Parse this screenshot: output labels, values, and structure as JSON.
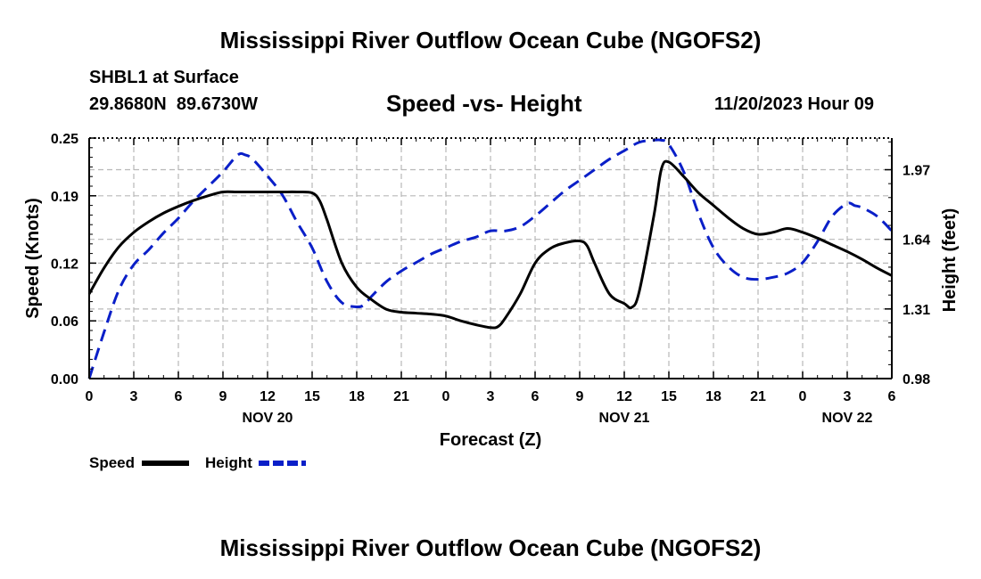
{
  "header": {
    "title": "Mississippi River Outflow Ocean Cube (NGOFS2)",
    "station": "SHBL1 at Surface",
    "coords": "29.8680N  89.6730W",
    "timestamp": "11/20/2023 Hour 09",
    "footer_title": "Mississippi River Outflow Ocean Cube (NGOFS2)"
  },
  "chart_data": {
    "type": "line",
    "title": "Speed -vs- Height",
    "xlabel": "Forecast (Z)",
    "ylabel": "Speed (Knots)",
    "y2label": "Height (feet)",
    "xlim": [
      0,
      54
    ],
    "ylim": [
      0,
      0.25
    ],
    "y2lim": [
      0.98,
      2.12
    ],
    "x_ticks": [
      0,
      3,
      6,
      9,
      12,
      15,
      18,
      21,
      24,
      27,
      30,
      33,
      36,
      39,
      42,
      45,
      48,
      51,
      54
    ],
    "x_tick_labels": [
      "0",
      "3",
      "6",
      "9",
      "12",
      "15",
      "18",
      "21",
      "0",
      "3",
      "6",
      "9",
      "12",
      "15",
      "18",
      "21",
      "0",
      "3",
      "6"
    ],
    "date_labels": [
      {
        "x": 12,
        "label": "NOV 20"
      },
      {
        "x": 36,
        "label": "NOV 21"
      },
      {
        "x": 51,
        "label": "NOV 22"
      }
    ],
    "y_ticks": [
      0.0,
      0.06,
      0.12,
      0.19,
      0.25
    ],
    "y_tick_labels": [
      "0.00",
      "0.06",
      "0.12",
      "0.19",
      "0.25"
    ],
    "y2_ticks": [
      0.98,
      1.31,
      1.64,
      1.97
    ],
    "y2_tick_labels": [
      "0.98",
      "1.31",
      "1.64",
      "1.97"
    ],
    "grid": true,
    "legend_position": "bottom-left",
    "series": [
      {
        "name": "Speed",
        "axis": "left",
        "color": "#000000",
        "dash": "solid",
        "x": [
          0,
          1,
          2,
          3,
          4,
          5,
          6,
          7,
          8,
          9,
          10,
          11,
          12,
          13,
          14,
          15,
          15.5,
          16,
          17,
          18,
          19,
          20,
          21,
          22,
          23,
          24,
          25,
          26,
          27,
          27.5,
          28,
          29,
          30,
          31,
          32,
          33,
          33.5,
          34,
          35,
          36,
          36.5,
          37,
          38,
          38.5,
          39,
          40,
          41,
          42,
          43,
          44,
          45,
          46,
          47,
          48,
          49,
          50,
          51,
          52,
          53,
          54
        ],
        "values": [
          0.088,
          0.115,
          0.137,
          0.152,
          0.163,
          0.172,
          0.179,
          0.185,
          0.19,
          0.194,
          0.194,
          0.194,
          0.194,
          0.194,
          0.194,
          0.193,
          0.185,
          0.165,
          0.12,
          0.095,
          0.082,
          0.072,
          0.069,
          0.068,
          0.067,
          0.065,
          0.06,
          0.056,
          0.053,
          0.054,
          0.063,
          0.088,
          0.12,
          0.135,
          0.141,
          0.143,
          0.138,
          0.12,
          0.088,
          0.078,
          0.074,
          0.09,
          0.17,
          0.218,
          0.225,
          0.21,
          0.193,
          0.18,
          0.167,
          0.156,
          0.15,
          0.152,
          0.156,
          0.152,
          0.146,
          0.139,
          0.132,
          0.124,
          0.115,
          0.107
        ]
      },
      {
        "name": "Height",
        "axis": "right",
        "color": "#0a1fc8",
        "dash": "dashed",
        "x": [
          0,
          1,
          2,
          3,
          4,
          5,
          6,
          7,
          8,
          9,
          10,
          10.5,
          11,
          12,
          13,
          14,
          15,
          16,
          17,
          18,
          18.5,
          19,
          20,
          21,
          22,
          23,
          24,
          25,
          26,
          27,
          28,
          29,
          30,
          31,
          32,
          33,
          34,
          35,
          36,
          37,
          38,
          38.5,
          39,
          40,
          41,
          42,
          43,
          44,
          45,
          46,
          47,
          48,
          49,
          50,
          51,
          51.5,
          52,
          53,
          54
        ],
        "values": [
          0.98,
          1.2,
          1.4,
          1.52,
          1.59,
          1.67,
          1.74,
          1.82,
          1.89,
          1.96,
          2.04,
          2.04,
          2.02,
          1.94,
          1.85,
          1.72,
          1.6,
          1.44,
          1.34,
          1.32,
          1.33,
          1.37,
          1.44,
          1.49,
          1.53,
          1.57,
          1.6,
          1.63,
          1.65,
          1.68,
          1.68,
          1.7,
          1.75,
          1.81,
          1.87,
          1.92,
          1.97,
          2.02,
          2.06,
          2.1,
          2.11,
          2.11,
          2.09,
          1.96,
          1.76,
          1.6,
          1.51,
          1.46,
          1.45,
          1.46,
          1.48,
          1.53,
          1.63,
          1.75,
          1.81,
          1.8,
          1.79,
          1.75,
          1.68
        ]
      }
    ]
  }
}
